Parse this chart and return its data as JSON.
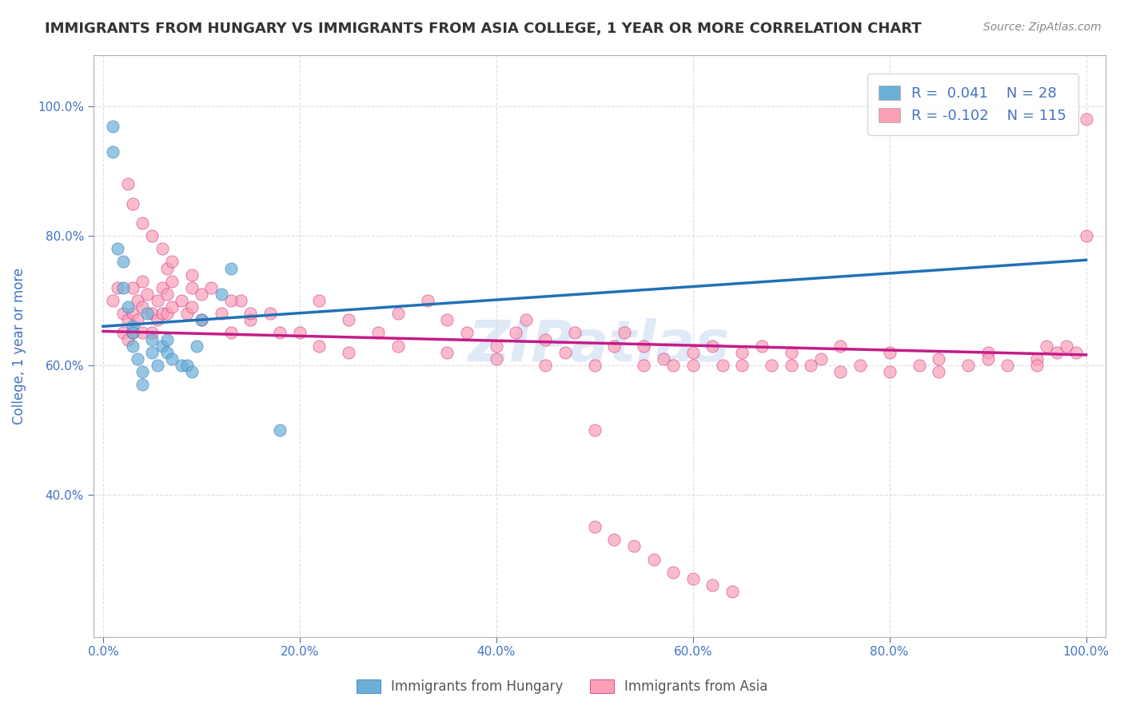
{
  "title": "IMMIGRANTS FROM HUNGARY VS IMMIGRANTS FROM ASIA COLLEGE, 1 YEAR OR MORE CORRELATION CHART",
  "source": "Source: ZipAtlas.com",
  "xlabel": "",
  "ylabel": "College, 1 year or more",
  "xlim": [
    0.0,
    1.0
  ],
  "ylim": [
    0.2,
    1.05
  ],
  "x_tick_labels": [
    "0.0%",
    "20.0%",
    "40.0%",
    "60.0%",
    "80.0%",
    "100.0%"
  ],
  "x_tick_positions": [
    0.0,
    0.2,
    0.4,
    0.6,
    0.8,
    1.0
  ],
  "y_tick_labels": [
    "40.0%",
    "60.0%",
    "80.0%",
    "100.0%"
  ],
  "y_tick_positions": [
    0.4,
    0.6,
    0.8,
    1.0
  ],
  "legend_r1": "R =  0.041   N = 28",
  "legend_r2": "R = -0.102   N = 115",
  "r1": 0.041,
  "n1": 28,
  "r2": -0.102,
  "n2": 115,
  "blue_color": "#6baed6",
  "blue_line_color": "#2171b5",
  "pink_color": "#fa9fb5",
  "pink_line_color": "#c51b8a",
  "legend_text_color": "#4472c4",
  "watermark": "ZIPatlas",
  "blue_scatter_x": [
    0.01,
    0.01,
    0.015,
    0.02,
    0.02,
    0.025,
    0.03,
    0.03,
    0.03,
    0.035,
    0.04,
    0.04,
    0.045,
    0.05,
    0.05,
    0.055,
    0.06,
    0.065,
    0.065,
    0.07,
    0.08,
    0.085,
    0.09,
    0.095,
    0.1,
    0.12,
    0.13,
    0.18
  ],
  "blue_scatter_y": [
    0.97,
    0.93,
    0.78,
    0.76,
    0.72,
    0.69,
    0.66,
    0.65,
    0.63,
    0.61,
    0.59,
    0.57,
    0.68,
    0.64,
    0.62,
    0.6,
    0.63,
    0.64,
    0.62,
    0.61,
    0.6,
    0.6,
    0.59,
    0.63,
    0.67,
    0.71,
    0.75,
    0.5
  ],
  "pink_scatter_x": [
    0.01,
    0.015,
    0.02,
    0.02,
    0.025,
    0.025,
    0.03,
    0.03,
    0.03,
    0.035,
    0.035,
    0.04,
    0.04,
    0.04,
    0.045,
    0.05,
    0.05,
    0.055,
    0.055,
    0.06,
    0.06,
    0.065,
    0.065,
    0.065,
    0.07,
    0.07,
    0.08,
    0.085,
    0.09,
    0.09,
    0.1,
    0.1,
    0.12,
    0.13,
    0.14,
    0.15,
    0.17,
    0.2,
    0.22,
    0.25,
    0.28,
    0.3,
    0.33,
    0.35,
    0.37,
    0.4,
    0.42,
    0.43,
    0.45,
    0.47,
    0.48,
    0.5,
    0.52,
    0.53,
    0.55,
    0.57,
    0.58,
    0.6,
    0.62,
    0.63,
    0.65,
    0.67,
    0.68,
    0.7,
    0.72,
    0.73,
    0.75,
    0.77,
    0.8,
    0.83,
    0.85,
    0.88,
    0.9,
    0.92,
    0.95,
    0.96,
    0.97,
    0.98,
    0.99,
    1.0,
    1.0,
    0.025,
    0.03,
    0.04,
    0.05,
    0.06,
    0.07,
    0.09,
    0.11,
    0.13,
    0.15,
    0.18,
    0.22,
    0.25,
    0.3,
    0.35,
    0.4,
    0.45,
    0.5,
    0.55,
    0.6,
    0.65,
    0.7,
    0.75,
    0.8,
    0.85,
    0.9,
    0.95,
    0.5,
    0.52,
    0.54,
    0.56,
    0.58,
    0.6,
    0.62,
    0.64
  ],
  "pink_scatter_y": [
    0.7,
    0.72,
    0.68,
    0.65,
    0.67,
    0.64,
    0.72,
    0.68,
    0.65,
    0.7,
    0.67,
    0.73,
    0.69,
    0.65,
    0.71,
    0.68,
    0.65,
    0.7,
    0.67,
    0.72,
    0.68,
    0.75,
    0.71,
    0.68,
    0.73,
    0.69,
    0.7,
    0.68,
    0.72,
    0.69,
    0.71,
    0.67,
    0.68,
    0.65,
    0.7,
    0.67,
    0.68,
    0.65,
    0.7,
    0.67,
    0.65,
    0.68,
    0.7,
    0.67,
    0.65,
    0.63,
    0.65,
    0.67,
    0.64,
    0.62,
    0.65,
    0.5,
    0.63,
    0.65,
    0.63,
    0.61,
    0.6,
    0.62,
    0.63,
    0.6,
    0.62,
    0.63,
    0.6,
    0.62,
    0.6,
    0.61,
    0.63,
    0.6,
    0.62,
    0.6,
    0.61,
    0.6,
    0.62,
    0.6,
    0.61,
    0.63,
    0.62,
    0.63,
    0.62,
    0.8,
    0.98,
    0.88,
    0.85,
    0.82,
    0.8,
    0.78,
    0.76,
    0.74,
    0.72,
    0.7,
    0.68,
    0.65,
    0.63,
    0.62,
    0.63,
    0.62,
    0.61,
    0.6,
    0.6,
    0.6,
    0.6,
    0.6,
    0.6,
    0.59,
    0.59,
    0.59,
    0.61,
    0.6,
    0.35,
    0.33,
    0.32,
    0.3,
    0.28,
    0.27,
    0.26,
    0.25
  ]
}
